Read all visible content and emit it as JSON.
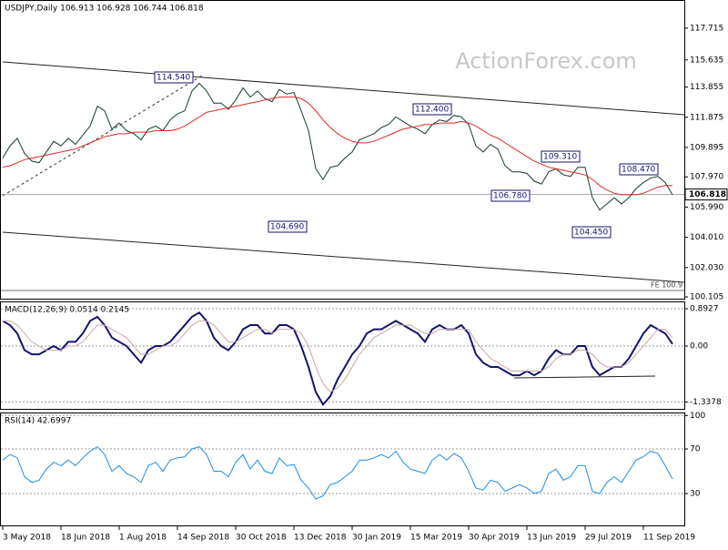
{
  "chart_data": [
    {
      "type": "line",
      "title": "USDJPY,Daily 106.913 106.928 106.744 106.818",
      "watermark": "ActionForex.com",
      "categories": [
        "3 May 2018",
        null,
        null,
        null,
        null,
        null,
        null,
        null,
        "18 Jun 2018",
        null,
        null,
        null,
        null,
        null,
        null,
        null,
        "1 Aug 2018",
        null,
        null,
        null,
        null,
        null,
        null,
        null,
        "14 Sep 2018",
        null,
        null,
        null,
        null,
        null,
        null,
        null,
        "30 Oct 2018",
        null,
        null,
        null,
        null,
        null,
        null,
        null,
        "13 Dec 2018",
        null,
        null,
        null,
        null,
        null,
        null,
        null,
        "30 Jan 2019",
        null,
        null,
        null,
        null,
        null,
        null,
        null,
        "15 Mar 2019",
        null,
        null,
        null,
        null,
        null,
        null,
        null,
        "30 Apr 2019",
        null,
        null,
        null,
        null,
        null,
        null,
        null,
        "13 Jun 2019",
        null,
        null,
        null,
        null,
        null,
        null,
        null,
        "29 Jul 2019",
        null,
        null,
        null,
        null,
        null,
        null,
        null,
        "11 Sep 2019",
        null,
        null,
        null,
        null
      ],
      "series": [
        {
          "color": "#143c28",
          "values": [
            109.2,
            110.0,
            110.5,
            109.5,
            109.0,
            108.9,
            109.6,
            110.3,
            110.0,
            110.5,
            110.1,
            110.7,
            111.3,
            112.6,
            112.3,
            111.1,
            111.5,
            111.0,
            110.8,
            110.4,
            111.1,
            111.3,
            111.0,
            111.7,
            112.1,
            112.3,
            113.6,
            114.1,
            113.6,
            112.8,
            112.8,
            112.4,
            113.0,
            113.8,
            113.2,
            113.6,
            113.1,
            112.9,
            113.7,
            113.4,
            113.5,
            112.3,
            111.0,
            108.5,
            107.8,
            108.6,
            108.7,
            109.2,
            109.6,
            110.4,
            110.6,
            110.8,
            111.2,
            111.4,
            111.9,
            111.6,
            111.3,
            111.1,
            110.8,
            111.4,
            111.7,
            111.6,
            112.0,
            111.9,
            111.4,
            110.0,
            109.6,
            110.1,
            109.8,
            108.7,
            108.3,
            108.3,
            108.2,
            107.7,
            107.5,
            108.3,
            108.5,
            108.1,
            108.0,
            108.6,
            108.6,
            106.6,
            105.8,
            106.2,
            106.6,
            106.2,
            106.6,
            107.2,
            107.6,
            107.9,
            108.0,
            107.6,
            106.8
          ]
        },
        {
          "color": "#e02828",
          "values": [
            108.6,
            108.7,
            108.9,
            109.1,
            109.2,
            109.3,
            109.4,
            109.5,
            109.6,
            109.7,
            109.8,
            110.0,
            110.2,
            110.4,
            110.6,
            110.7,
            110.8,
            110.8,
            110.9,
            110.9,
            110.9,
            111.0,
            111.0,
            111.0,
            111.1,
            111.3,
            111.6,
            111.9,
            112.2,
            112.3,
            112.4,
            112.5,
            112.6,
            112.7,
            112.8,
            112.9,
            113.0,
            113.1,
            113.2,
            113.2,
            113.2,
            113.1,
            112.8,
            112.3,
            111.7,
            111.2,
            110.8,
            110.5,
            110.3,
            110.2,
            110.2,
            110.3,
            110.5,
            110.7,
            110.9,
            111.1,
            111.2,
            111.3,
            111.4,
            111.4,
            111.5,
            111.5,
            111.5,
            111.6,
            111.5,
            111.3,
            111.0,
            110.7,
            110.5,
            110.2,
            109.9,
            109.6,
            109.3,
            109.0,
            108.8,
            108.6,
            108.5,
            108.4,
            108.3,
            108.2,
            108.1,
            107.8,
            107.4,
            107.1,
            106.9,
            106.8,
            106.8,
            106.8,
            106.9,
            107.1,
            107.3,
            107.4,
            107.4
          ]
        }
      ],
      "last_price": 106.818,
      "annotations": [
        "114.540",
        "112.400",
        "109.310",
        "108.470",
        "106.780",
        "104.690",
        "104.450",
        "FE 100.9"
      ],
      "ylim": [
        99.93,
        119.5
      ],
      "yticks": [
        117.715,
        115.635,
        113.855,
        111.875,
        109.895,
        {
          "value": 107.97,
          "label": "107.970"
        },
        {
          "value": 105.99,
          "label": "105.990"
        },
        {
          "value": 104.01,
          "label": "104.010"
        },
        {
          "value": 102.03,
          "label": "102.030"
        },
        100.105
      ]
    },
    {
      "type": "line",
      "title": "MACD(12,26,9) 0.0514 0.2145",
      "series": [
        {
          "color": "#14146e",
          "values": [
            0.6,
            0.5,
            0.3,
            -0.1,
            -0.2,
            -0.2,
            -0.1,
            0.0,
            -0.1,
            0.1,
            0.1,
            0.3,
            0.6,
            0.7,
            0.5,
            0.2,
            0.1,
            0.0,
            -0.2,
            -0.4,
            -0.1,
            0.0,
            0.0,
            0.1,
            0.3,
            0.5,
            0.7,
            0.8,
            0.6,
            0.2,
            0.0,
            -0.1,
            0.1,
            0.4,
            0.5,
            0.5,
            0.3,
            0.3,
            0.5,
            0.5,
            0.4,
            0.0,
            -0.5,
            -1.1,
            -1.4,
            -1.2,
            -0.8,
            -0.5,
            -0.2,
            0.0,
            0.3,
            0.4,
            0.4,
            0.5,
            0.6,
            0.5,
            0.4,
            0.3,
            0.1,
            0.4,
            0.5,
            0.4,
            0.4,
            0.5,
            0.3,
            -0.2,
            -0.4,
            -0.5,
            -0.5,
            -0.6,
            -0.7,
            -0.7,
            -0.6,
            -0.7,
            -0.6,
            -0.3,
            -0.1,
            -0.2,
            -0.2,
            0.0,
            0.0,
            -0.5,
            -0.7,
            -0.6,
            -0.5,
            -0.5,
            -0.3,
            0.0,
            0.3,
            0.5,
            0.4,
            0.3,
            0.05
          ]
        },
        {
          "color": "#c8a8a8",
          "values": [
            0.6,
            0.6,
            0.5,
            0.3,
            0.1,
            0.0,
            -0.1,
            -0.1,
            -0.1,
            0.0,
            0.0,
            0.1,
            0.3,
            0.5,
            0.5,
            0.4,
            0.3,
            0.2,
            0.0,
            -0.2,
            -0.2,
            -0.1,
            0.0,
            0.0,
            0.1,
            0.3,
            0.5,
            0.6,
            0.6,
            0.5,
            0.3,
            0.1,
            0.1,
            0.2,
            0.3,
            0.4,
            0.4,
            0.3,
            0.4,
            0.4,
            0.4,
            0.3,
            0.0,
            -0.5,
            -0.9,
            -1.1,
            -1.0,
            -0.8,
            -0.5,
            -0.2,
            0.0,
            0.2,
            0.3,
            0.4,
            0.5,
            0.5,
            0.5,
            0.4,
            0.3,
            0.3,
            0.4,
            0.4,
            0.4,
            0.4,
            0.4,
            0.1,
            -0.1,
            -0.3,
            -0.4,
            -0.5,
            -0.6,
            -0.6,
            -0.6,
            -0.6,
            -0.6,
            -0.5,
            -0.3,
            -0.2,
            -0.2,
            -0.1,
            -0.1,
            -0.2,
            -0.4,
            -0.5,
            -0.5,
            -0.5,
            -0.4,
            -0.2,
            0.0,
            0.2,
            0.4,
            0.4,
            0.2
          ]
        }
      ],
      "ylim": [
        -1.525,
        1.067
      ],
      "yticks": [
        0.8927,
        {
          "value": 0,
          "label": "0.00"
        },
        -1.3378
      ]
    },
    {
      "type": "line",
      "title": "RSI(14) 42.6997",
      "series": [
        {
          "color": "#1e8ce6",
          "values": [
            60,
            65,
            62,
            45,
            40,
            42,
            52,
            58,
            55,
            60,
            55,
            62,
            68,
            72,
            65,
            50,
            55,
            48,
            45,
            40,
            55,
            58,
            50,
            60,
            62,
            63,
            70,
            72,
            65,
            50,
            50,
            45,
            58,
            65,
            52,
            60,
            50,
            48,
            62,
            55,
            56,
            42,
            35,
            25,
            28,
            38,
            40,
            45,
            50,
            60,
            60,
            62,
            65,
            62,
            68,
            58,
            52,
            50,
            48,
            60,
            65,
            60,
            66,
            62,
            50,
            35,
            33,
            42,
            40,
            32,
            35,
            38,
            35,
            30,
            32,
            48,
            52,
            42,
            45,
            55,
            55,
            32,
            30,
            40,
            45,
            40,
            50,
            60,
            63,
            68,
            66,
            55,
            43
          ]
        }
      ],
      "ylim": [
        0.6,
        102.7
      ],
      "yticks": [
        100,
        70,
        30
      ]
    }
  ]
}
